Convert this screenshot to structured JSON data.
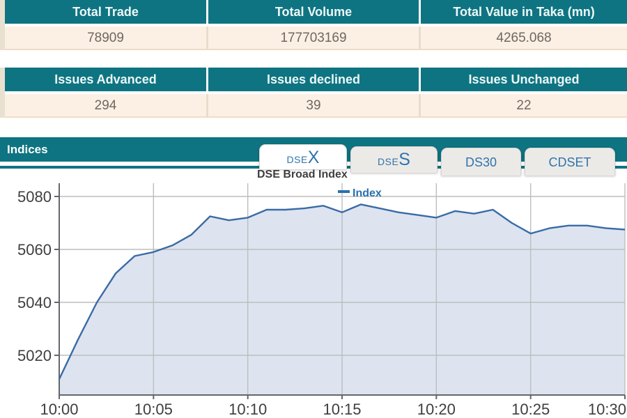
{
  "summary_table": {
    "headers": [
      "Total Trade",
      "Total Volume",
      "Total Value in Taka (mn)"
    ],
    "values": [
      "78909",
      "177703169",
      "4265.068"
    ]
  },
  "issues_table": {
    "headers": [
      "Issues Advanced",
      "Issues declined",
      "Issues Unchanged"
    ],
    "values": [
      "294",
      "39",
      "22"
    ]
  },
  "indices": {
    "title": "Indices",
    "active_tab": "DSEX",
    "tabs": {
      "dsex": {
        "prefix": "DSE",
        "suffix": "X"
      },
      "dses": {
        "prefix": "DSE",
        "suffix": "S"
      },
      "ds30": {
        "label": "DS30"
      },
      "cdset": {
        "label": "CDSET"
      }
    }
  },
  "chart_data": {
    "type": "area",
    "title": "DSE Broad Index",
    "legend": "Index",
    "xlabel": "",
    "ylabel": "",
    "grid": true,
    "legend_position": "top-center",
    "xlim": [
      0,
      30
    ],
    "ylim": [
      5005,
      5085
    ],
    "xticks": {
      "values": [
        0,
        5,
        10,
        15,
        20,
        25,
        30
      ],
      "labels": [
        "10:00",
        "10:05",
        "10:10",
        "10:15",
        "10:20",
        "10:25",
        "10:30"
      ]
    },
    "yticks": {
      "values": [
        5020,
        5040,
        5060,
        5080
      ],
      "labels": [
        "5020",
        "5040",
        "5060",
        "5080"
      ]
    },
    "series": [
      {
        "name": "Index",
        "x": [
          0,
          1,
          2,
          3,
          4,
          5,
          6,
          7,
          8,
          9,
          10,
          11,
          12,
          13,
          14,
          15,
          16,
          17,
          18,
          19,
          20,
          21,
          22,
          23,
          24,
          25,
          26,
          27,
          28,
          29,
          30
        ],
        "values": [
          5011,
          5026,
          5040,
          5051,
          5057.5,
          5059,
          5061.5,
          5065.5,
          5072.5,
          5071,
          5072,
          5075,
          5075,
          5075.5,
          5076.5,
          5074,
          5077,
          5075.5,
          5074,
          5073,
          5072,
          5074.5,
          5073.5,
          5075,
          5070,
          5066,
          5068,
          5069,
          5069,
          5068,
          5067.5
        ]
      }
    ],
    "colors": {
      "line": "#3a6ba5",
      "fill": "#dde4f0",
      "grid": "#bdbdbd",
      "axis": "#63666b",
      "tick_label": "#3e3e3e",
      "legend_text": "#2a70ae"
    }
  },
  "colors": {
    "teal": "#0e7482",
    "row_cream": "#fcf0e4",
    "left_strip_cream": "#e9e1cf",
    "tab_blue": "#2f74ad",
    "inactive_tab_bg": "#eceae7"
  }
}
